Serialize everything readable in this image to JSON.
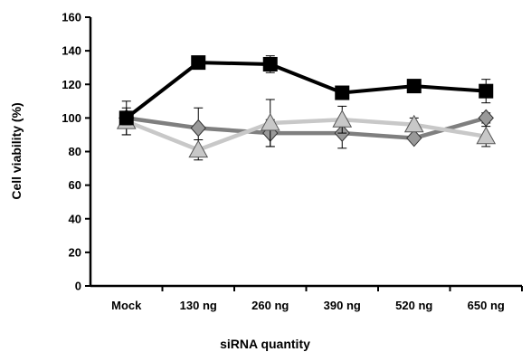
{
  "chart_data": {
    "type": "line",
    "categories": [
      "Mock",
      "130 ng",
      "260 ng",
      "390 ng",
      "520 ng",
      "650 ng"
    ],
    "xlabel": "siRNA quantity",
    "ylabel": "Cell viability (%)",
    "ylim": [
      0,
      160
    ],
    "yticks": [
      0,
      20,
      40,
      60,
      80,
      100,
      120,
      140,
      160
    ],
    "grid": false,
    "legend": "none",
    "series": [
      {
        "marker": "square",
        "color": "#000000",
        "values": [
          100,
          133,
          132,
          115,
          119,
          116
        ],
        "errors": [
          4,
          2,
          5,
          2,
          2,
          7
        ]
      },
      {
        "marker": "diamond",
        "color": "#7f7f7f",
        "markerFill": "#999999",
        "values": [
          100,
          94,
          91,
          91,
          88,
          100
        ],
        "errors": [
          10,
          12,
          8,
          9,
          2,
          3
        ]
      },
      {
        "marker": "triangle",
        "color": "#c8c8c8",
        "markerFill": "#c8c8c8",
        "values": [
          98,
          81,
          97,
          99,
          96,
          89
        ],
        "errors": [
          8,
          6,
          14,
          8,
          4,
          6
        ]
      }
    ]
  }
}
